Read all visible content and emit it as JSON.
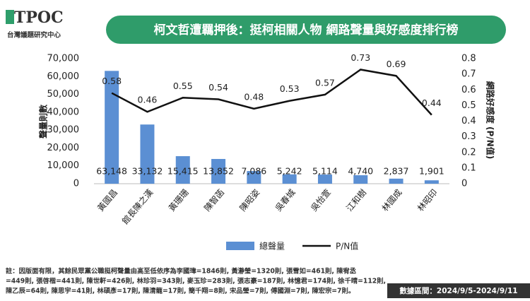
{
  "header": {
    "logo": "TPOC",
    "org": "台灣議題研究中心",
    "title": "柯文哲遭羈押後：挺柯相關人物 網路聲量與好感度排行榜"
  },
  "chart_data": {
    "type": "combo",
    "categories": [
      "黃國昌",
      "館長陳之漢",
      "黃珊珊",
      "陳智菡",
      "陳昭姿",
      "吳春城",
      "吳怡萱",
      "江和樹",
      "林國成",
      "林昭印"
    ],
    "series": [
      {
        "name": "總聲量",
        "type": "bar",
        "color": "#5b8fd3",
        "values": [
          63148,
          33132,
          15415,
          13852,
          7086,
          5242,
          5114,
          4740,
          2837,
          1901
        ],
        "value_labels": [
          "63,148",
          "33,132",
          "15,415",
          "13,852",
          "7,086",
          "5,242",
          "5,114",
          "4,740",
          "2,837",
          "1,901"
        ]
      },
      {
        "name": "P/N值",
        "type": "line",
        "axis": "y2",
        "color": "#111111",
        "values": [
          0.58,
          0.46,
          0.55,
          0.54,
          0.48,
          0.53,
          0.57,
          0.73,
          0.69,
          0.44
        ]
      }
    ],
    "ylabel": "聲量則數",
    "y2label": "網路好感度 (P/N值)",
    "ylim": [
      0,
      70000
    ],
    "yticks": [
      0,
      {
        "value": 10000,
        "label": "10,000"
      },
      {
        "value": 20000,
        "label": "20,000"
      },
      {
        "value": 30000,
        "label": "30,000"
      },
      {
        "value": 40000,
        "label": "40,000"
      },
      {
        "value": 50000,
        "label": "50,000"
      },
      {
        "value": 60000,
        "label": "60,000"
      },
      {
        "value": 70000,
        "label": "70,000"
      }
    ],
    "y2lim": [
      0,
      0.8
    ],
    "y2ticks": [
      0,
      0.1,
      0.2,
      0.3,
      0.4,
      0.5,
      0.6,
      0.7,
      0.8
    ],
    "legend": "bottom"
  },
  "footer": {
    "note": [
      "註：因版面有限，其餘民眾黨公職挺柯聲量由高至低依序為李國瑋=1846則, 黃瀞瑩=1320則, 張雪如=461則, 陳宥丞",
      "=449則, 張啓楷=441則, 陳世軒=426則, 林珍羽=343則, 麥玉珍=283則, 張志豪=187則, 林憶君=174則, 徐千晴=112則,",
      "陳乙辰=64則, 陳思宇=41則, 林碩彥=17則, 陳清龍=17則, 簡千翔=8則, 宋品瑩=7則, 傅國淵=7則, 陳宏宗=7則。"
    ],
    "range": "數據區間：2024/9/5-2024/9/11"
  }
}
